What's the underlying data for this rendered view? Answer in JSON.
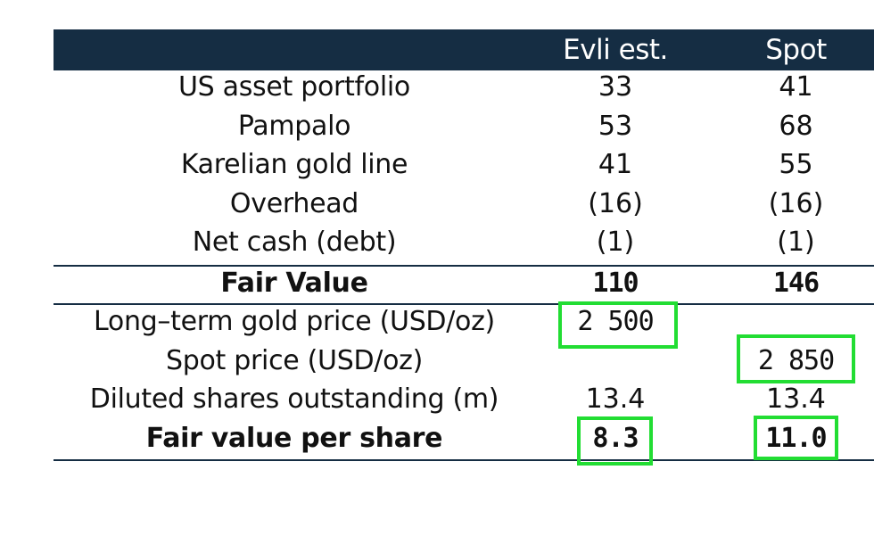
{
  "table": {
    "headers": {
      "label": "",
      "evli": "Evli est.",
      "spot": "Spot"
    },
    "rows": [
      {
        "label": "US asset portfolio",
        "evli": "33",
        "spot": "41"
      },
      {
        "label": "Pampalo",
        "evli": "53",
        "spot": "68"
      },
      {
        "label": "Karelian gold line",
        "evli": "41",
        "spot": "55"
      },
      {
        "label": "Overhead",
        "evli": "(16)",
        "spot": "(16)"
      },
      {
        "label": "Net cash (debt)",
        "evli": "(1)",
        "spot": "(1)"
      }
    ],
    "fair_value": {
      "label": "Fair Value",
      "evli": "110",
      "spot": "146"
    },
    "assumptions": [
      {
        "label": "Long–term gold price (USD/oz)",
        "evli": "2 500",
        "spot": ""
      },
      {
        "label": "Spot price (USD/oz)",
        "evli": "",
        "spot": "2 850"
      },
      {
        "label": "Diluted shares outstanding (m)",
        "evli": "13.4",
        "spot": "13.4"
      }
    ],
    "per_share": {
      "label": "Fair value per share",
      "evli": "8.3",
      "spot": "11.0"
    }
  },
  "highlight_color": "#22dd33",
  "header_color": "#152d43"
}
